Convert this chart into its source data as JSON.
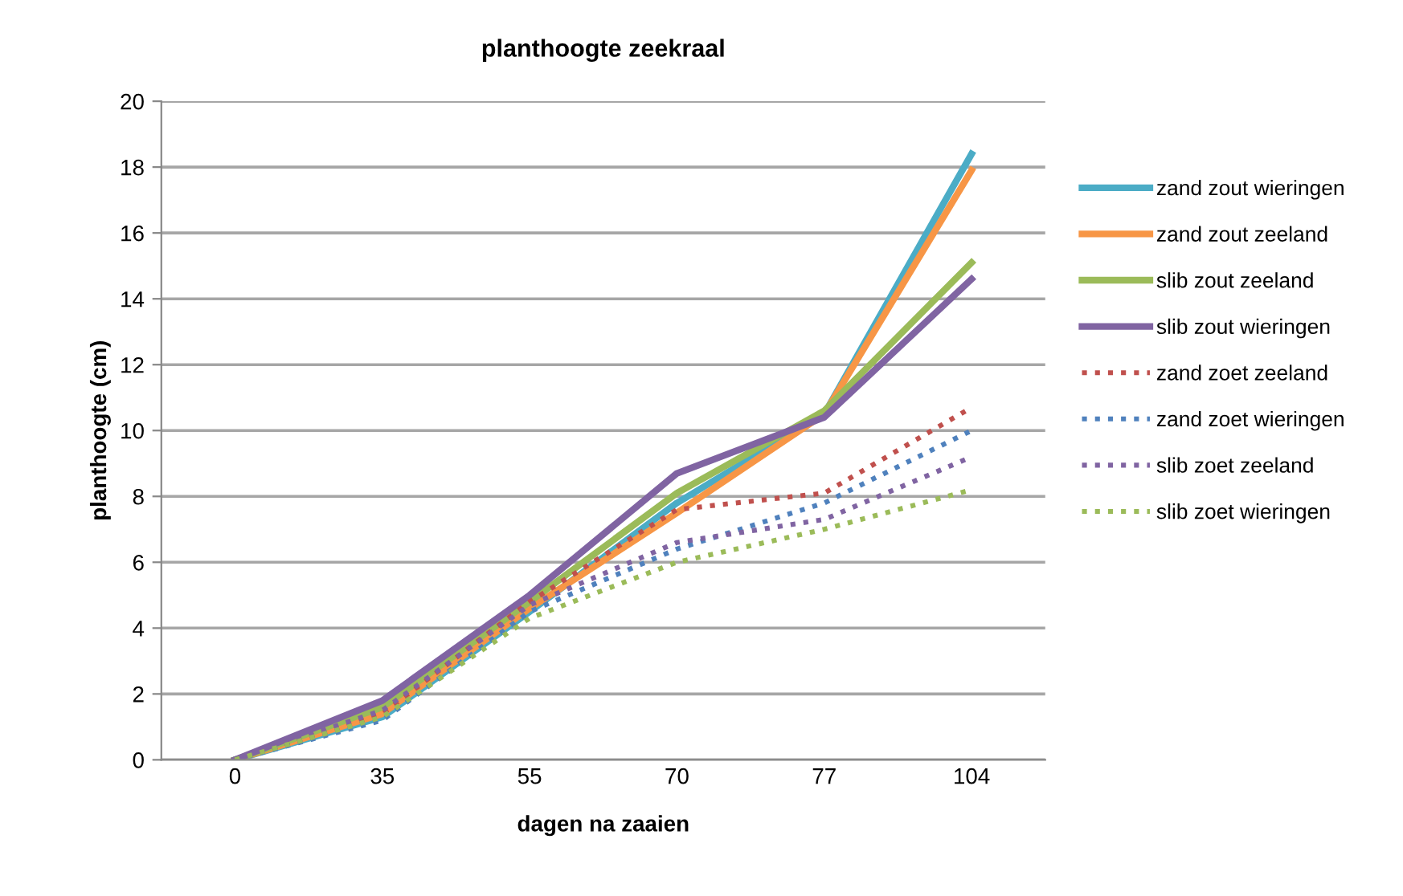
{
  "chart_data": {
    "type": "line",
    "title": "planthoogte zeekraal",
    "xlabel": "dagen na zaaien",
    "ylabel": "planthoogte (cm)",
    "categories": [
      "0",
      "35",
      "55",
      "70",
      "77",
      "104"
    ],
    "ylim": [
      0,
      20
    ],
    "yticks": [
      0,
      2,
      4,
      6,
      8,
      10,
      12,
      14,
      16,
      18,
      20
    ],
    "grid": "y",
    "legend": "right",
    "marker": "none",
    "series": [
      {
        "name": "zand zout wieringen",
        "color": "#4bacc6",
        "line_style": "solid",
        "values": [
          0,
          1.3,
          4.5,
          7.8,
          10.5,
          18.4
        ]
      },
      {
        "name": "zand zout zeeland",
        "color": "#f79646",
        "line_style": "solid",
        "values": [
          0,
          1.4,
          4.6,
          7.5,
          10.5,
          17.9
        ]
      },
      {
        "name": "slib zout zeeland",
        "color": "#9bbb59",
        "line_style": "solid",
        "values": [
          0,
          1.6,
          4.8,
          8.1,
          10.6,
          15.1
        ]
      },
      {
        "name": "slib zout wieringen",
        "color": "#8064a2",
        "line_style": "solid",
        "values": [
          0,
          1.8,
          5.0,
          8.7,
          10.4,
          14.6
        ]
      },
      {
        "name": "zand zoet zeeland",
        "color": "#c0504d",
        "line_style": "dotted",
        "values": [
          0,
          1.4,
          4.8,
          7.6,
          8.1,
          10.7
        ]
      },
      {
        "name": "zand zoet wieringen",
        "color": "#4f81bd",
        "line_style": "dotted",
        "values": [
          0,
          1.2,
          4.5,
          6.4,
          7.8,
          10.0
        ]
      },
      {
        "name": "slib zoet zeeland",
        "color": "#8064a2",
        "line_style": "dotted",
        "values": [
          0,
          1.5,
          4.7,
          6.6,
          7.3,
          9.2
        ]
      },
      {
        "name": "slib zoet wieringen",
        "color": "#9bbb59",
        "line_style": "dotted",
        "values": [
          0,
          1.3,
          4.3,
          6.0,
          7.0,
          8.2
        ]
      }
    ]
  }
}
